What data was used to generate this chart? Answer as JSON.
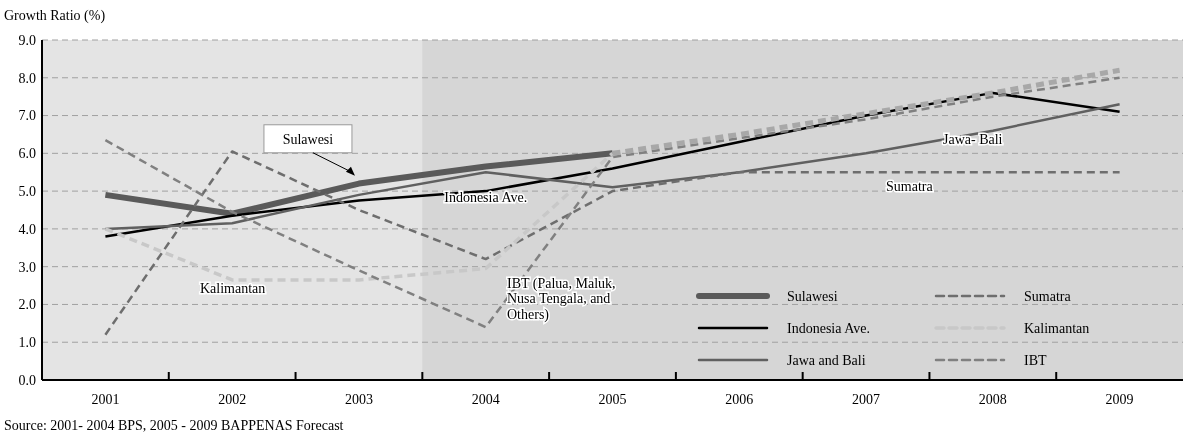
{
  "chart_data": {
    "type": "line",
    "ylabel": "Growth Ratio (%)",
    "categories": [
      "2001",
      "2002",
      "2003",
      "2004",
      "2005",
      "2006",
      "2007",
      "2008",
      "2009"
    ],
    "series": [
      {
        "name": "Sulawesi",
        "color": "#5a5a5a",
        "values": [
          4.9,
          4.4,
          5.2,
          5.65,
          6.0,
          null,
          null,
          null,
          null
        ]
      },
      {
        "name": "Indonesia Ave.",
        "color": "#000000",
        "values": [
          3.8,
          4.35,
          4.75,
          5.0,
          5.6,
          6.3,
          7.0,
          7.6,
          7.1
        ]
      },
      {
        "name": "Jawa and Bali",
        "color": "#606060",
        "values": [
          4.0,
          4.15,
          4.9,
          5.5,
          5.1,
          5.5,
          6.0,
          6.6,
          7.3
        ]
      },
      {
        "name": "Sumatra",
        "color": "#6e6e6e",
        "line_style": "dashed",
        "values": [
          1.2,
          6.05,
          4.5,
          3.2,
          5.0,
          5.5,
          5.5,
          5.5,
          5.5
        ]
      },
      {
        "name": "Kalimantan",
        "color": "#c8c8c8",
        "line_style": "dashed",
        "values": [
          4.0,
          2.65,
          2.65,
          2.95,
          6.0,
          null,
          null,
          null,
          null
        ]
      },
      {
        "name": "IBT",
        "color": "#808080",
        "line_style": "dashed",
        "values": [
          6.35,
          4.45,
          2.9,
          1.4,
          5.9,
          6.4,
          6.9,
          7.5,
          8.0
        ]
      },
      {
        "color": "#a8a8a8",
        "line_style": "dashed",
        "values": [
          null,
          null,
          null,
          null,
          6.0,
          6.5,
          7.05,
          7.6,
          8.2
        ]
      }
    ],
    "ylim": [
      0,
      9
    ],
    "yticks": [
      {
        "value": 0,
        "label": "0.0"
      },
      {
        "value": 1,
        "label": "1.0"
      },
      {
        "value": 2,
        "label": "2.0"
      },
      {
        "value": 3,
        "label": "3.0"
      },
      {
        "value": 4,
        "label": "4.0"
      },
      {
        "value": 5,
        "label": "5.0"
      },
      {
        "value": 6,
        "label": "6.0"
      },
      {
        "value": 7,
        "label": "7.0"
      },
      {
        "value": 8,
        "label": "8.0"
      },
      {
        "value": 9,
        "label": "9.0"
      }
    ],
    "grid": "y",
    "legend": "bottom right",
    "marker": "none",
    "bands": [
      {
        "axis": "x",
        "from": "2004",
        "to": "2009",
        "color": "#d6d6d6"
      }
    ],
    "annotations": [
      {
        "text": "Sulawesi",
        "x": "2003",
        "y": 5.3
      },
      {
        "text": "Indonesia Ave.",
        "x": "2004",
        "y": 4.85
      },
      "Jawa- Bali",
      "Sumatra",
      "Kalimantan",
      "IBT (Palua, Maluk, Nusa Tengala, and Others)",
      "Source: 2001- 2004 BPS, 2005 - 2009 BAPPENAS Forecast"
    ]
  }
}
